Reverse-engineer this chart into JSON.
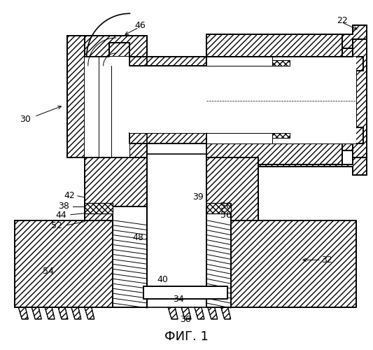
{
  "title": "ФИГ. 1",
  "bg_color": "#ffffff",
  "line_color": "#000000",
  "metal_hatch": "////",
  "lw_main": 1.2,
  "lw_thin": 0.7
}
